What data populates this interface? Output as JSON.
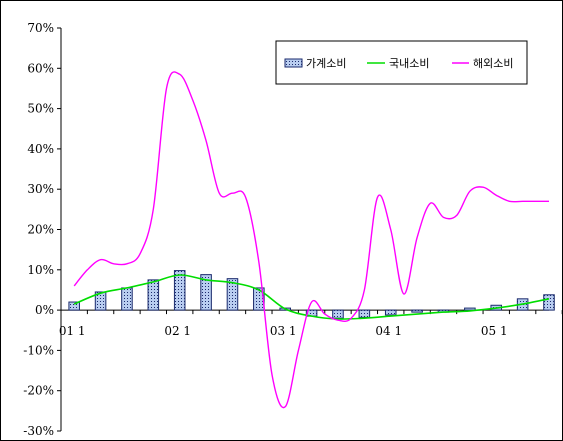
{
  "chart_data": {
    "type": "bar",
    "title": "",
    "xlabel": "",
    "ylabel": "",
    "ylim": [
      -30,
      70
    ],
    "yticks": [
      -30,
      -20,
      -10,
      0,
      10,
      20,
      30,
      40,
      50,
      60,
      70
    ],
    "ytick_labels": [
      "-30%",
      "-20%",
      "-10%",
      "0%",
      "10%",
      "20%",
      "30%",
      "40%",
      "50%",
      "60%",
      "70%"
    ],
    "x_tick_labels": [
      "01 1",
      "02 1",
      "03 1",
      "04 1",
      "05 1"
    ],
    "x_tick_positions": [
      0,
      4,
      8,
      12,
      16
    ],
    "legend_position": "top-right",
    "grid": false,
    "colors": {
      "bar_fill": "#b9cdf0",
      "bar_edge": "#1a2a6c",
      "domestic": "#00dd00",
      "overseas": "#ff00ff"
    },
    "series": [
      {
        "name": "가계소비",
        "kind": "bar",
        "x": [
          0,
          1,
          2,
          3,
          4,
          5,
          6,
          7,
          8,
          9,
          10,
          11,
          12,
          13,
          14,
          15,
          16,
          17,
          18
        ],
        "values": [
          2,
          4.5,
          5.5,
          7.5,
          9.8,
          8.8,
          7.8,
          5.5,
          0.5,
          -1.5,
          -2,
          -1.8,
          -1.2,
          -0.5,
          -0.5,
          0.5,
          1.2,
          2.8,
          3.8
        ]
      },
      {
        "name": "국내소비",
        "kind": "line",
        "x": [
          0,
          1,
          2,
          3,
          4,
          5,
          6,
          7,
          8,
          9,
          10,
          11,
          12,
          13,
          14,
          15,
          16,
          17,
          18
        ],
        "values": [
          1.5,
          4.2,
          5.5,
          7,
          8.7,
          7.5,
          6.8,
          5,
          0.3,
          -1.5,
          -2.2,
          -2,
          -1.5,
          -1,
          -0.5,
          -0.2,
          0.5,
          1.5,
          2.8
        ]
      },
      {
        "name": "해외소비",
        "kind": "line",
        "x": [
          0,
          0.5,
          1,
          1.5,
          2,
          2.5,
          3,
          3.5,
          4,
          4.5,
          5,
          5.5,
          6,
          6.5,
          7,
          7.5,
          8,
          8.5,
          9,
          9.5,
          10,
          10.5,
          11,
          11.5,
          12,
          12.5,
          13,
          13.5,
          14,
          14.5,
          15,
          15.5,
          16,
          16.5,
          17,
          17.5,
          18
        ],
        "values": [
          6,
          10,
          12.5,
          11.5,
          11.5,
          14,
          25,
          55,
          58.5,
          52,
          42,
          29,
          29,
          28,
          12,
          -16,
          -24,
          -10,
          2,
          -1,
          -2.5,
          -2,
          5,
          28,
          20,
          4,
          18,
          26.5,
          23,
          23.5,
          29.5,
          30.5,
          28.5,
          27,
          27,
          27,
          27
        ]
      }
    ]
  }
}
